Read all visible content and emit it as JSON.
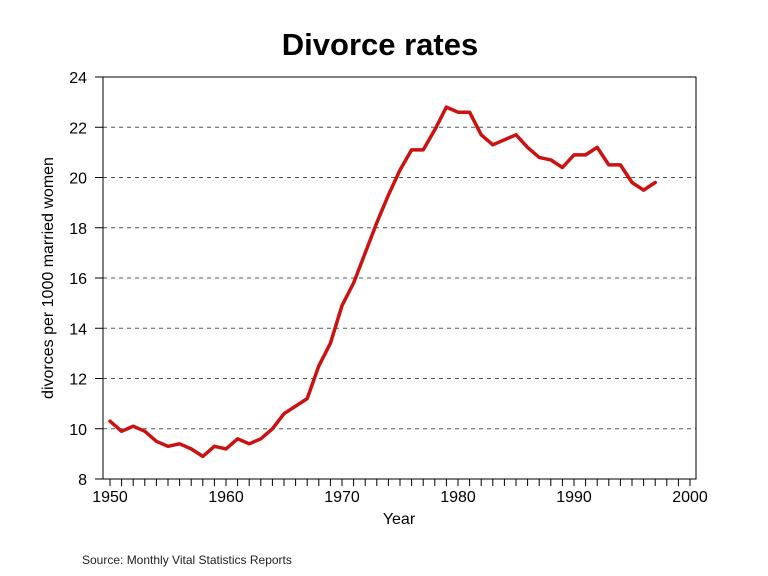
{
  "chart_data": {
    "type": "line",
    "title": "Divorce rates",
    "xlabel": "Year",
    "ylabel": "divorces per 1000 married women",
    "source": "Source: Monthly Vital Statistics Reports",
    "xlim": [
      1950,
      2000
    ],
    "ylim": [
      8,
      24
    ],
    "x_ticks": [
      1950,
      1960,
      1970,
      1980,
      1990,
      2000
    ],
    "y_ticks": [
      8,
      10,
      12,
      14,
      16,
      18,
      20,
      22,
      24
    ],
    "grid": {
      "y": true,
      "x": false,
      "style": "dashed"
    },
    "legend": null,
    "series": [
      {
        "name": "Divorce rate",
        "color": "#cc1111",
        "x": [
          1950,
          1951,
          1952,
          1953,
          1954,
          1955,
          1956,
          1957,
          1958,
          1959,
          1960,
          1961,
          1962,
          1963,
          1964,
          1965,
          1966,
          1967,
          1968,
          1969,
          1970,
          1971,
          1972,
          1973,
          1974,
          1975,
          1976,
          1977,
          1978,
          1979,
          1980,
          1981,
          1982,
          1983,
          1984,
          1985,
          1986,
          1987,
          1988,
          1989,
          1990,
          1991,
          1992,
          1993,
          1994,
          1995,
          1996,
          1997
        ],
        "values": [
          10.3,
          9.9,
          10.1,
          9.9,
          9.5,
          9.3,
          9.4,
          9.2,
          8.9,
          9.3,
          9.2,
          9.6,
          9.4,
          9.6,
          10.0,
          10.6,
          10.9,
          11.2,
          12.5,
          13.4,
          14.9,
          15.8,
          17.0,
          18.2,
          19.3,
          20.3,
          21.1,
          21.1,
          21.9,
          22.8,
          22.6,
          22.6,
          21.7,
          21.3,
          21.5,
          21.7,
          21.2,
          20.8,
          20.7,
          20.4,
          20.9,
          20.9,
          21.2,
          20.5,
          20.5,
          19.8,
          19.5,
          19.8
        ]
      }
    ]
  }
}
